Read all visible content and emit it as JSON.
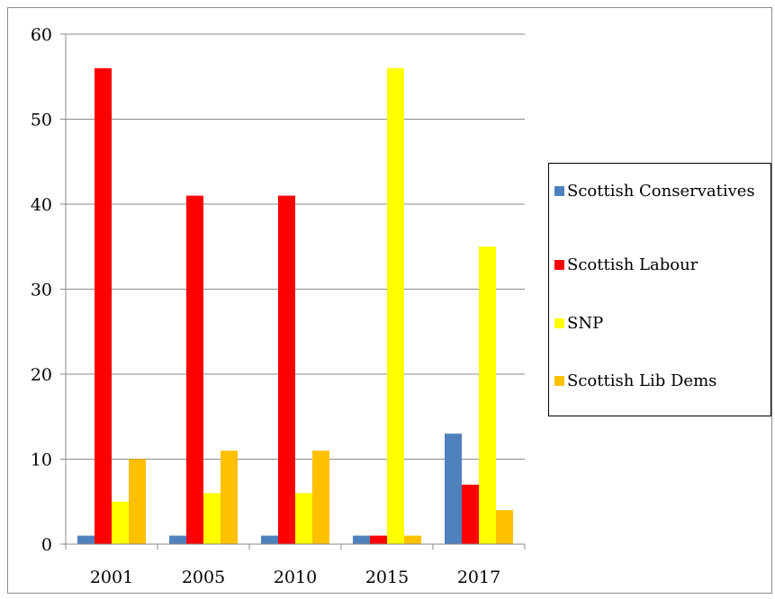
{
  "chart_data": {
    "type": "bar",
    "title": "",
    "xlabel": "",
    "ylabel": "",
    "categories": [
      "2001",
      "2005",
      "2010",
      "2015",
      "2017"
    ],
    "ylim": [
      0,
      60
    ],
    "yticks": [
      0,
      10,
      20,
      30,
      40,
      50,
      60
    ],
    "grid": true,
    "legend_position": "right",
    "series": [
      {
        "name": "Scottish Conservatives",
        "color": "#4f81bd",
        "values": [
          1,
          1,
          1,
          1,
          13
        ]
      },
      {
        "name": "Scottish Labour",
        "color": "#ff0000",
        "values": [
          56,
          41,
          41,
          1,
          7
        ]
      },
      {
        "name": "SNP",
        "color": "#ffff00",
        "values": [
          5,
          6,
          6,
          56,
          35
        ]
      },
      {
        "name": "Scottish Lib Dems",
        "color": "#ffc000",
        "values": [
          10,
          11,
          11,
          1,
          4
        ]
      }
    ]
  }
}
